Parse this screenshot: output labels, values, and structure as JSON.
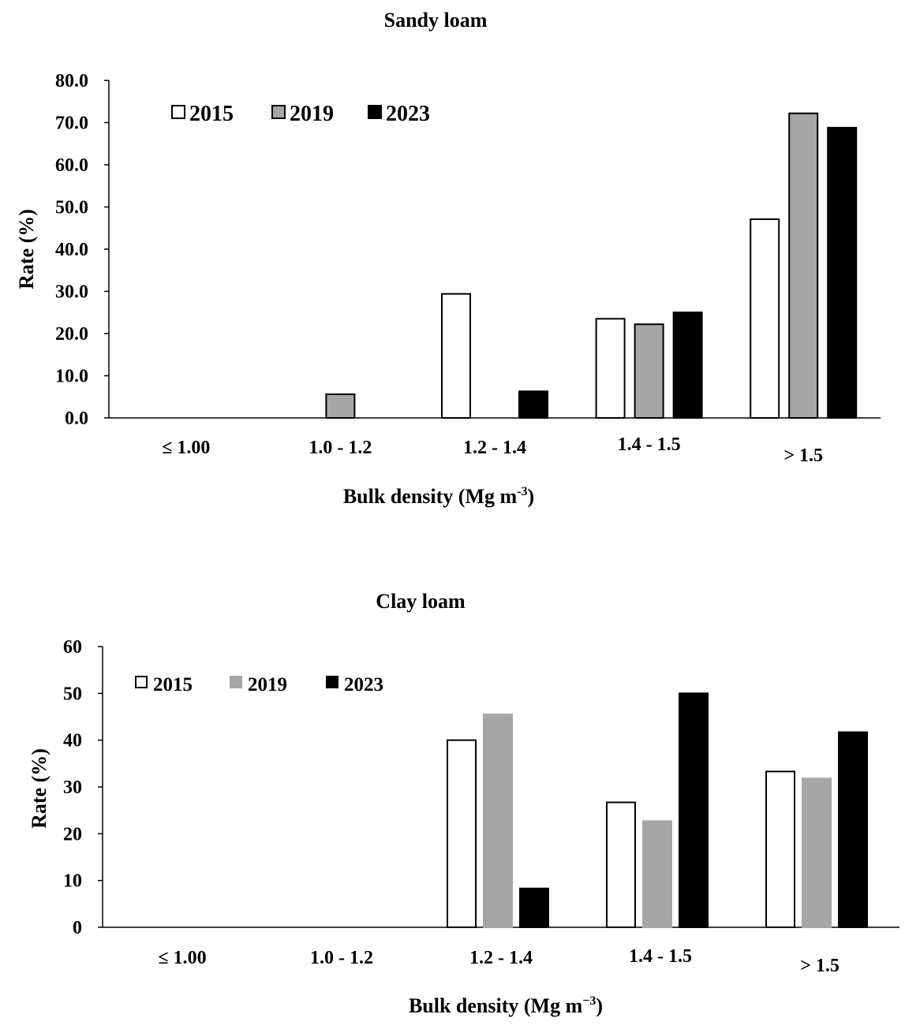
{
  "chart_data": [
    {
      "type": "bar",
      "title": "Sandy loam",
      "xlabel": "Bulk density (Mg m",
      "xlabel_sup": "-3",
      "xlabel_end": ")",
      "ylabel": "Rate (%)",
      "categories": [
        "≤ 1.00",
        "1.0 - 1.2",
        "1.2 - 1.4",
        "1.4 - 1.5",
        ">  1.5"
      ],
      "ylim": [
        0,
        80
      ],
      "yticks": [
        "0.0",
        "10.0",
        "20.0",
        "30.0",
        "40.0",
        "50.0",
        "60.0",
        "70.0",
        "80.0"
      ],
      "legend": "top-left",
      "series": [
        {
          "name": "2015",
          "color": "#ffffff",
          "values": [
            0,
            0,
            29.4,
            23.5,
            47.1
          ]
        },
        {
          "name": "2019",
          "color": "#a6a6a6",
          "values": [
            0,
            5.6,
            0,
            22.2,
            72.2
          ]
        },
        {
          "name": "2023",
          "color": "#000000",
          "values": [
            0,
            0,
            6.3,
            25.0,
            68.8
          ]
        }
      ]
    },
    {
      "type": "bar",
      "title": "Clay loam",
      "xlabel": "Bulk density (Mg m",
      "xlabel_sup": "−3",
      "xlabel_end": ")",
      "ylabel": "Rate (%)",
      "categories": [
        "≤ 1.00",
        "1.0 - 1.2",
        "1.2 - 1.4",
        "1.4 - 1.5",
        ">  1.5"
      ],
      "ylim": [
        0,
        60
      ],
      "yticks": [
        "0",
        "10",
        "20",
        "30",
        "40",
        "50",
        "60"
      ],
      "legend": "top-left",
      "series": [
        {
          "name": "2015",
          "color": "#ffffff",
          "values": [
            0,
            0,
            40.0,
            26.7,
            33.3
          ]
        },
        {
          "name": "2019",
          "color": "#a6a6a6",
          "values": [
            0,
            0,
            45.5,
            22.7,
            31.8
          ]
        },
        {
          "name": "2023",
          "color": "#000000",
          "values": [
            0,
            0,
            8.3,
            50.0,
            41.7
          ]
        }
      ]
    }
  ]
}
